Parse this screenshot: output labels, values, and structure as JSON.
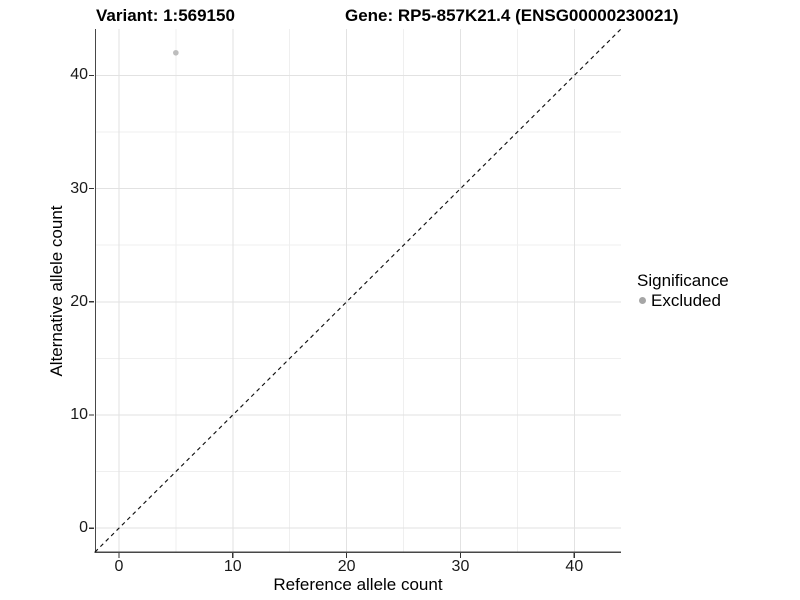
{
  "header": {
    "variant_title": "Variant: 1:569150",
    "gene_title": "Gene: RP5-857K21.4 (ENSG00000230021)"
  },
  "chart_data": {
    "type": "scatter",
    "xlabel": "Reference allele count",
    "ylabel": "Alternative allele count",
    "xlim": [
      -2.1,
      44.1
    ],
    "ylim": [
      -2.1,
      44.1
    ],
    "x_major_ticks": [
      0,
      10,
      20,
      30,
      40
    ],
    "y_major_ticks": [
      0,
      10,
      20,
      30,
      40
    ],
    "x_minor_gridlines": [
      5,
      15,
      25,
      35
    ],
    "y_minor_gridlines": [
      5,
      15,
      25,
      35
    ],
    "grid": true,
    "points": [
      {
        "x": 5,
        "y": 42,
        "significance": "Excluded"
      }
    ],
    "reference_line": {
      "type": "identity",
      "style": "dashed",
      "x1": -2.1,
      "y1": -2.1,
      "x2": 44.1,
      "y2": 44.1
    },
    "legend": {
      "title": "Significance",
      "position": "right",
      "items": [
        {
          "label": "Excluded",
          "marker": "circle",
          "color": "#a6a6a6"
        }
      ]
    },
    "colors": {
      "point": "#bdbdbd",
      "grid_major": "#e2e2e2",
      "grid_minor": "#efefef",
      "axis_line": "#474747",
      "tick_mark": "#333333",
      "reference_line": "#111111",
      "tick_label": "#1a1a1a"
    }
  }
}
